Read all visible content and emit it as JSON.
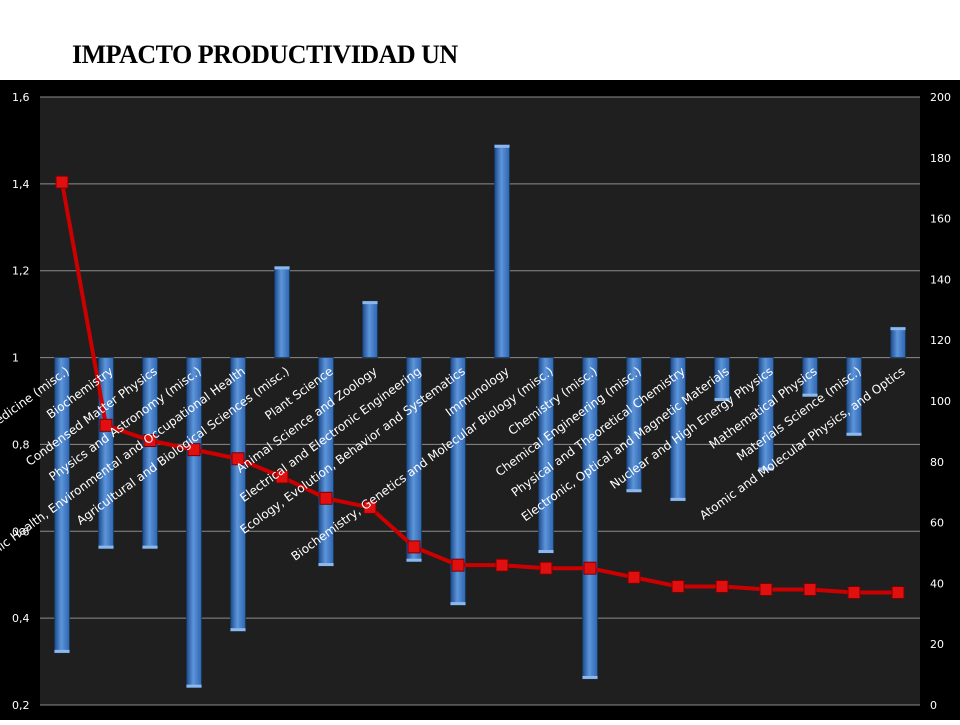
{
  "page_title": "IMPACTO PRODUCTIVIDAD UN",
  "colors": {
    "background": "#000000",
    "plot_area": "#1f1f1f",
    "gridline": "#8c8c8c",
    "bar": "#2f65b0",
    "line": "#cc0000",
    "text": "#ffffff"
  },
  "chart_data": {
    "type": "bar",
    "title": "",
    "xlabel": "",
    "ylabel": "",
    "ylim": [
      0.2,
      1.6
    ],
    "y_ticks": [
      "0,2",
      "0,4",
      "0,6",
      "0,8",
      "1",
      "1,2",
      "1,4",
      "1,6"
    ],
    "y2lim": [
      0,
      200
    ],
    "y2_ticks": [
      "0",
      "20",
      "40",
      "60",
      "80",
      "100",
      "120",
      "140",
      "160",
      "180",
      "200"
    ],
    "bar_baseline": 1,
    "grid": true,
    "legend": "none",
    "categories": [
      "Medicine (misc.)",
      "Biochemistry",
      "Condensed Matter Physics",
      "Physics and Astronomy (misc.)",
      "Public Health, Environmental and Occupational Health",
      "Agricultural and Biological Sciences (misc.)",
      "Plant Science",
      "Animal Science and Zoology",
      "Electrical and Electronic Engineering",
      "Ecology, Evolution, Behavior and Systematics",
      "Immunology",
      "Biochemistry, Genetics and Molecular Biology (misc.)",
      "Chemistry (misc.)",
      "Chemical Engineering (misc.)",
      "Physical and Theoretical Chemistry",
      "Electronic, Optical and Magnetic Materials",
      "Nuclear and High Energy Physics",
      "Mathematical Physics",
      "Materials Science (misc.)",
      "Atomic and Molecular Physics, and Optics"
    ],
    "series": [
      {
        "type": "bar",
        "axis": "left",
        "values": [
          0.32,
          0.56,
          0.56,
          0.24,
          0.37,
          1.21,
          0.52,
          1.13,
          0.53,
          0.43,
          1.49,
          0.55,
          0.26,
          0.69,
          0.67,
          0.9,
          0.74,
          0.91,
          0.82,
          1.07
        ]
      },
      {
        "type": "line",
        "axis": "right",
        "values": [
          172,
          92,
          87,
          84,
          81,
          75,
          68,
          65,
          52,
          46,
          46,
          45,
          45,
          42,
          39,
          39,
          38,
          38,
          37,
          37
        ]
      }
    ]
  }
}
